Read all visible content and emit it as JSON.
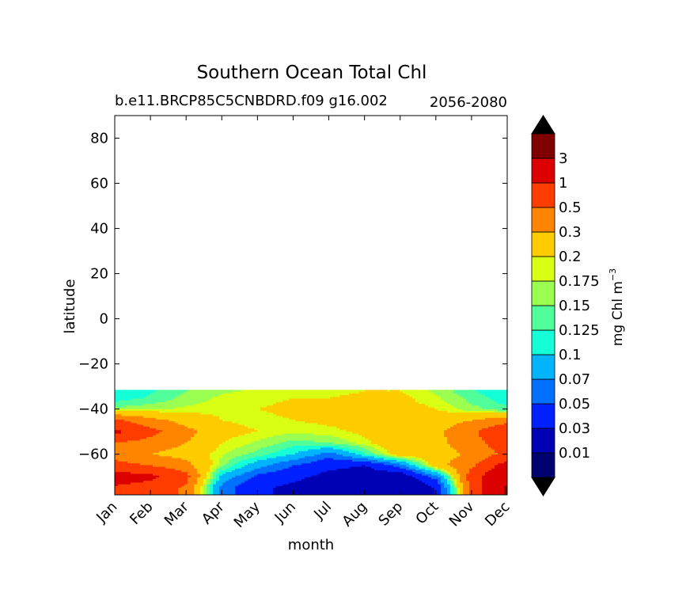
{
  "chart_data": {
    "type": "contour",
    "title": "Southern Ocean Total Chl",
    "subtitle_left": "b.e11.BRCP85C5CNBDRD.f09 g16.002",
    "subtitle_right": "2056-2080",
    "xlabel": "month",
    "ylabel": "latitude",
    "x_ticks": [
      "Jan",
      "Feb",
      "Mar",
      "Apr",
      "May",
      "Jun",
      "Jul",
      "Aug",
      "Sep",
      "Oct",
      "Nov",
      "Dec"
    ],
    "y_ticks": [
      80,
      60,
      40,
      20,
      0,
      -20,
      -40,
      -60
    ],
    "ylim": [
      -78,
      90
    ],
    "data_lat_range": [
      -78,
      -31.5
    ],
    "colorbar": {
      "label": "mg Chl m",
      "label_sup": "−3",
      "levels": [
        "0.01",
        "0.03",
        "0.05",
        "0.07",
        "0.1",
        "0.125",
        "0.15",
        "0.175",
        "0.2",
        "0.3",
        "0.5",
        "1",
        "3"
      ],
      "colors": [
        "#00006e",
        "#0000b4",
        "#0020ff",
        "#0070ff",
        "#00b4ff",
        "#14ffd8",
        "#50ff9a",
        "#9aff50",
        "#d8ff14",
        "#ffcc00",
        "#ff8400",
        "#ff3c00",
        "#dc0000",
        "#800000"
      ],
      "under_color": "#000000",
      "over_color": "#000000"
    },
    "series": [
      {
        "name": "-75N",
        "values": [
          0.9,
          0.7,
          0.45,
          0.06,
          0.035,
          0.025,
          0.02,
          0.015,
          0.015,
          0.03,
          0.6,
          3.5
        ]
      },
      {
        "name": "-70N",
        "values": [
          1.5,
          1.2,
          0.6,
          0.09,
          0.045,
          0.035,
          0.025,
          0.02,
          0.02,
          0.06,
          0.7,
          2.5
        ]
      },
      {
        "name": "-65N",
        "values": [
          0.6,
          0.5,
          0.35,
          0.16,
          0.08,
          0.05,
          0.035,
          0.03,
          0.06,
          0.25,
          0.45,
          1.4
        ]
      },
      {
        "name": "-60N",
        "values": [
          0.4,
          0.3,
          0.25,
          0.18,
          0.14,
          0.1,
          0.06,
          0.12,
          0.25,
          0.25,
          0.32,
          0.6
        ]
      },
      {
        "name": "-55N",
        "values": [
          0.5,
          0.4,
          0.3,
          0.2,
          0.17,
          0.14,
          0.15,
          0.19,
          0.25,
          0.26,
          0.4,
          0.7
        ]
      },
      {
        "name": "-50N",
        "values": [
          1.2,
          0.6,
          0.35,
          0.22,
          0.2,
          0.18,
          0.19,
          0.21,
          0.24,
          0.27,
          0.45,
          0.9
        ]
      },
      {
        "name": "-45N",
        "values": [
          0.55,
          0.35,
          0.25,
          0.2,
          0.19,
          0.2,
          0.21,
          0.22,
          0.23,
          0.23,
          0.3,
          0.4
        ]
      },
      {
        "name": "-40N",
        "values": [
          0.16,
          0.17,
          0.18,
          0.19,
          0.2,
          0.21,
          0.21,
          0.22,
          0.22,
          0.2,
          0.16,
          0.13
        ]
      },
      {
        "name": "-35N",
        "values": [
          0.11,
          0.13,
          0.16,
          0.18,
          0.19,
          0.2,
          0.2,
          0.21,
          0.21,
          0.18,
          0.14,
          0.11
        ]
      },
      {
        "name": "-32N",
        "values": [
          0.1,
          0.12,
          0.15,
          0.17,
          0.18,
          0.19,
          0.19,
          0.2,
          0.2,
          0.17,
          0.13,
          0.1
        ]
      }
    ],
    "lats": [
      -75,
      -70,
      -65,
      -60,
      -55,
      -50,
      -45,
      -40,
      -35,
      -32
    ]
  }
}
